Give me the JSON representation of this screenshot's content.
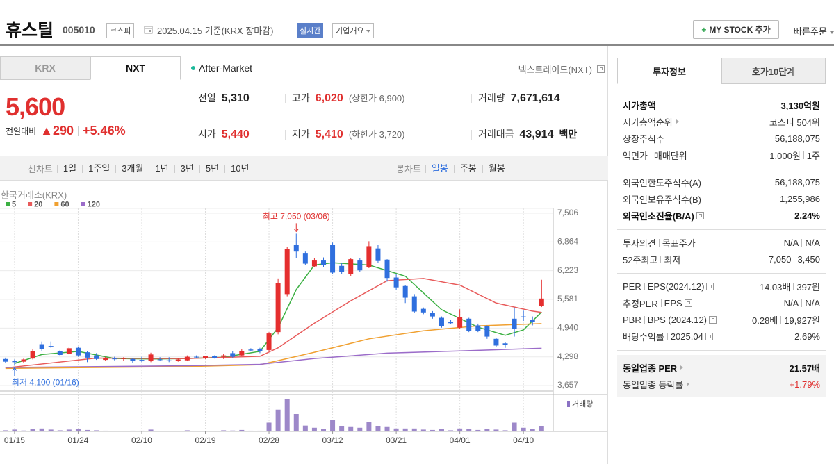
{
  "header": {
    "title": "휴스틸",
    "code": "005010",
    "market": "코스피",
    "date": "2025.04.15 기준(KRX 장마감)",
    "realtime": "실시간",
    "company_info": "기업개요",
    "my_stock": {
      "icon": "+",
      "label": "MY STOCK 추가"
    },
    "quick_order": "빠른주문"
  },
  "exchange_tabs": [
    "KRX",
    "NXT"
  ],
  "after_market": "After-Market",
  "nxt_label": "넥스트레이드(NXT)",
  "quote": {
    "price": "5,600",
    "change_label": "전일대비",
    "change": "▲290",
    "change_rate": "+5.46%"
  },
  "stats": [
    {
      "label": "전일",
      "value": "5,310"
    },
    {
      "label": "고가",
      "value": "6,020",
      "note": "(상한가 6,900)",
      "color": "#e0302f"
    },
    {
      "label": "거래량",
      "value": "7,671,614"
    },
    {
      "label": "시가",
      "value": "5,440",
      "color": "#e0302f"
    },
    {
      "label": "저가",
      "value": "5,410",
      "note": "(하한가 3,720)",
      "color": "#e0302f"
    },
    {
      "label": "거래대금",
      "value": "43,914",
      "unit": "백만"
    }
  ],
  "line_chart_tabs": {
    "label": "선차트",
    "items": [
      "1일",
      "1주일",
      "3개월",
      "1년",
      "3년",
      "5년",
      "10년"
    ]
  },
  "candle_chart_tabs": {
    "label": "봉차트",
    "items": [
      "일봉",
      "주봉",
      "월봉"
    ],
    "selected": 0
  },
  "chart_data": {
    "type": "candlestick",
    "source": "한국거래소(KRX)",
    "volume_label": "거래량",
    "grid": true,
    "up_color": "#e52e2e",
    "down_color": "#2f6fde",
    "volume_color": "#9d88c9",
    "x": [
      0,
      1,
      2,
      3,
      4,
      5,
      6,
      7,
      8,
      9,
      10,
      11,
      12,
      13,
      14,
      15,
      16,
      17,
      18,
      19,
      20,
      21,
      22,
      23,
      24,
      25,
      26,
      27,
      28,
      29,
      30,
      31,
      32,
      33,
      34,
      35,
      36,
      37,
      38,
      39,
      40,
      41,
      42,
      43,
      44,
      45,
      46,
      47,
      48,
      49,
      50,
      51,
      52,
      53,
      54,
      55,
      56,
      57,
      58,
      59
    ],
    "open": [
      4250,
      4200,
      4190,
      4260,
      4580,
      4540,
      4430,
      4370,
      4500,
      4400,
      4330,
      4230,
      4260,
      4250,
      4250,
      4230,
      4200,
      4240,
      4220,
      4210,
      4220,
      4300,
      4270,
      4310,
      4300,
      4380,
      4330,
      4460,
      4480,
      4450,
      4850,
      5700,
      6800,
      6620,
      6320,
      6450,
      6800,
      6330,
      6150,
      6450,
      6300,
      6720,
      6470,
      6070,
      5880,
      5650,
      5370,
      5280,
      5170,
      5080,
      4950,
      5150,
      5000,
      4980,
      4700,
      4600,
      5150,
      5200,
      5130,
      5440
    ],
    "high": [
      4280,
      4240,
      4260,
      4470,
      4640,
      4640,
      4450,
      4520,
      4530,
      4430,
      4380,
      4300,
      4300,
      4290,
      4270,
      4300,
      4390,
      4290,
      4290,
      4260,
      4330,
      4330,
      4320,
      4330,
      4360,
      4420,
      4470,
      4490,
      4500,
      4850,
      6050,
      6760,
      7050,
      6650,
      6500,
      6520,
      6850,
      6400,
      6500,
      6500,
      6880,
      6800,
      6480,
      6150,
      5900,
      5700,
      5400,
      5320,
      5200,
      5130,
      5360,
      5170,
      5040,
      5000,
      4720,
      4620,
      5400,
      5330,
      5200,
      6020
    ],
    "low": [
      4170,
      4100,
      4160,
      4240,
      4420,
      4500,
      4320,
      4350,
      4300,
      4180,
      4230,
      4210,
      4220,
      4200,
      4160,
      4180,
      4180,
      4200,
      4180,
      4190,
      4200,
      4270,
      4250,
      4260,
      4250,
      4280,
      4310,
      4420,
      4380,
      4430,
      4800,
      5650,
      6500,
      6350,
      6300,
      6300,
      6150,
      6150,
      6100,
      6200,
      6280,
      6400,
      5980,
      5800,
      5500,
      5280,
      5250,
      5150,
      4950,
      5030,
      4930,
      4850,
      4850,
      4700,
      4520,
      4500,
      4750,
      5100,
      5000,
      5410
    ],
    "close": [
      4190,
      4180,
      4240,
      4430,
      4470,
      4520,
      4340,
      4490,
      4330,
      4280,
      4250,
      4270,
      4250,
      4270,
      4200,
      4200,
      4350,
      4230,
      4210,
      4240,
      4300,
      4290,
      4310,
      4270,
      4330,
      4300,
      4430,
      4440,
      4420,
      4820,
      5950,
      6700,
      6650,
      6380,
      6450,
      6350,
      6180,
      6200,
      6480,
      6230,
      6770,
      6440,
      6060,
      5850,
      5620,
      5310,
      5290,
      5200,
      4990,
      5050,
      5180,
      4870,
      4880,
      4750,
      4550,
      4560,
      4920,
      5180,
      5070,
      5600
    ],
    "volume": [
      1500000,
      2500000,
      1200000,
      3500000,
      4000000,
      2500000,
      1500000,
      2500000,
      3000000,
      2000000,
      1500000,
      1000000,
      800000,
      800000,
      1000000,
      1000000,
      2500000,
      800000,
      800000,
      700000,
      1500000,
      800000,
      800000,
      800000,
      1500000,
      1200000,
      2000000,
      1000000,
      1000000,
      12000000,
      30000000,
      45000000,
      24000000,
      8000000,
      5000000,
      3500000,
      16000000,
      7000000,
      6000000,
      5000000,
      13000000,
      7000000,
      6000000,
      4000000,
      4000000,
      4000000,
      2500000,
      2000000,
      3000000,
      1500000,
      4000000,
      3000000,
      2000000,
      3000000,
      2500000,
      1500000,
      12000000,
      5000000,
      3000000,
      7671614
    ],
    "xlim": [
      -0.6,
      60.2
    ],
    "xticks": [
      {
        "value": 1,
        "label": "01/15"
      },
      {
        "value": 8,
        "label": "01/24"
      },
      {
        "value": 15,
        "label": "02/10"
      },
      {
        "value": 22,
        "label": "02/19"
      },
      {
        "value": 29,
        "label": "02/28"
      },
      {
        "value": 36,
        "label": "03/12"
      },
      {
        "value": 43,
        "label": "03/21"
      },
      {
        "value": 50,
        "label": "04/01"
      },
      {
        "value": 57,
        "label": "04/10"
      }
    ],
    "ylim": [
      3533,
      7615
    ],
    "yticks": [
      {
        "value": 3657,
        "label": "3,657"
      },
      {
        "value": 4298,
        "label": "4,298"
      },
      {
        "value": 4940,
        "label": "4,940"
      },
      {
        "value": 5581,
        "label": "5,581"
      },
      {
        "value": 6223,
        "label": "6,223"
      },
      {
        "value": 6864,
        "label": "6,864"
      },
      {
        "value": 7506,
        "label": "7,506"
      }
    ],
    "volume_ylim": [
      0,
      48000000
    ],
    "moving_averages": [
      {
        "name": "5",
        "color": "#3cb043",
        "x": [
          1,
          4,
          8,
          12,
          16,
          20,
          24,
          28,
          30,
          32,
          34,
          36,
          40,
          44,
          48,
          52,
          55,
          57,
          59
        ],
        "values": [
          4150,
          4350,
          4420,
          4260,
          4250,
          4260,
          4290,
          4420,
          4950,
          5800,
          6350,
          6400,
          6350,
          6100,
          5350,
          4960,
          4780,
          4900,
          5300
        ]
      },
      {
        "name": "20",
        "color": "#e85a5a",
        "x": [
          0,
          10,
          20,
          28,
          30,
          34,
          38,
          42,
          46,
          50,
          54,
          58,
          59
        ],
        "values": [
          4050,
          4270,
          4260,
          4310,
          4500,
          5050,
          5550,
          6000,
          6050,
          5900,
          5500,
          5320,
          5290
        ]
      },
      {
        "name": "60",
        "color": "#f0a030",
        "x": [
          0,
          20,
          28,
          34,
          40,
          46,
          52,
          59
        ],
        "values": [
          4040,
          4080,
          4120,
          4400,
          4700,
          4880,
          4990,
          5040
        ]
      },
      {
        "name": "120",
        "color": "#9b6cc9",
        "x": [
          0,
          20,
          28,
          34,
          42,
          50,
          59
        ],
        "values": [
          4060,
          4100,
          4130,
          4260,
          4380,
          4430,
          4490
        ]
      }
    ],
    "annotations": {
      "high": "최고 7,050 (03/06)",
      "low": "최저 4,100 (01/16)"
    }
  },
  "invest_tabs": [
    "투자정보",
    "호가10단계"
  ],
  "invest_groups": [
    [
      {
        "label": [
          "시가총액"
        ],
        "value": [
          "3,130억원"
        ],
        "bold": true
      },
      {
        "label": [
          "시가총액순위"
        ],
        "link": true,
        "value": [
          "코스피 504위"
        ]
      },
      {
        "label": [
          "상장주식수"
        ],
        "value": [
          "56,188,075"
        ]
      },
      {
        "label": [
          "액면가",
          "매매단위"
        ],
        "value": [
          "1,000원",
          "1주"
        ]
      }
    ],
    [
      {
        "label": [
          "외국인한도주식수(A)"
        ],
        "value": [
          "56,188,075"
        ]
      },
      {
        "label": [
          "외국인보유주식수(B)"
        ],
        "value": [
          "1,255,986"
        ]
      },
      {
        "label": [
          "외국인소진율(B/A)"
        ],
        "help": true,
        "value": [
          "2.24%"
        ],
        "bold": true
      }
    ],
    [
      {
        "label": [
          "투자의견",
          "목표주가"
        ],
        "value": [
          "N/A",
          "N/A"
        ]
      },
      {
        "label": [
          "52주최고",
          "최저"
        ],
        "value": [
          "7,050",
          "3,450"
        ]
      }
    ],
    [
      {
        "label": [
          "PER",
          "EPS(2024.12)"
        ],
        "help": true,
        "value": [
          "14.03배",
          "397원"
        ]
      },
      {
        "label": [
          "추정PER",
          "EPS"
        ],
        "help": true,
        "value": [
          "N/A",
          "N/A"
        ]
      },
      {
        "label": [
          "PBR",
          "BPS (2024.12)"
        ],
        "help": true,
        "value": [
          "0.28배",
          "19,927원"
        ]
      },
      {
        "label": [
          "배당수익률",
          "2025.04"
        ],
        "help": true,
        "value": [
          "2.69%"
        ]
      }
    ],
    [
      {
        "label": [
          "동일업종 PER"
        ],
        "link": true,
        "value": [
          "21.57배"
        ],
        "bold": true
      },
      {
        "label": [
          "동일업종 등락률"
        ],
        "link": true,
        "value": [
          "+1.79%"
        ],
        "color": "#e0302f"
      }
    ]
  ]
}
